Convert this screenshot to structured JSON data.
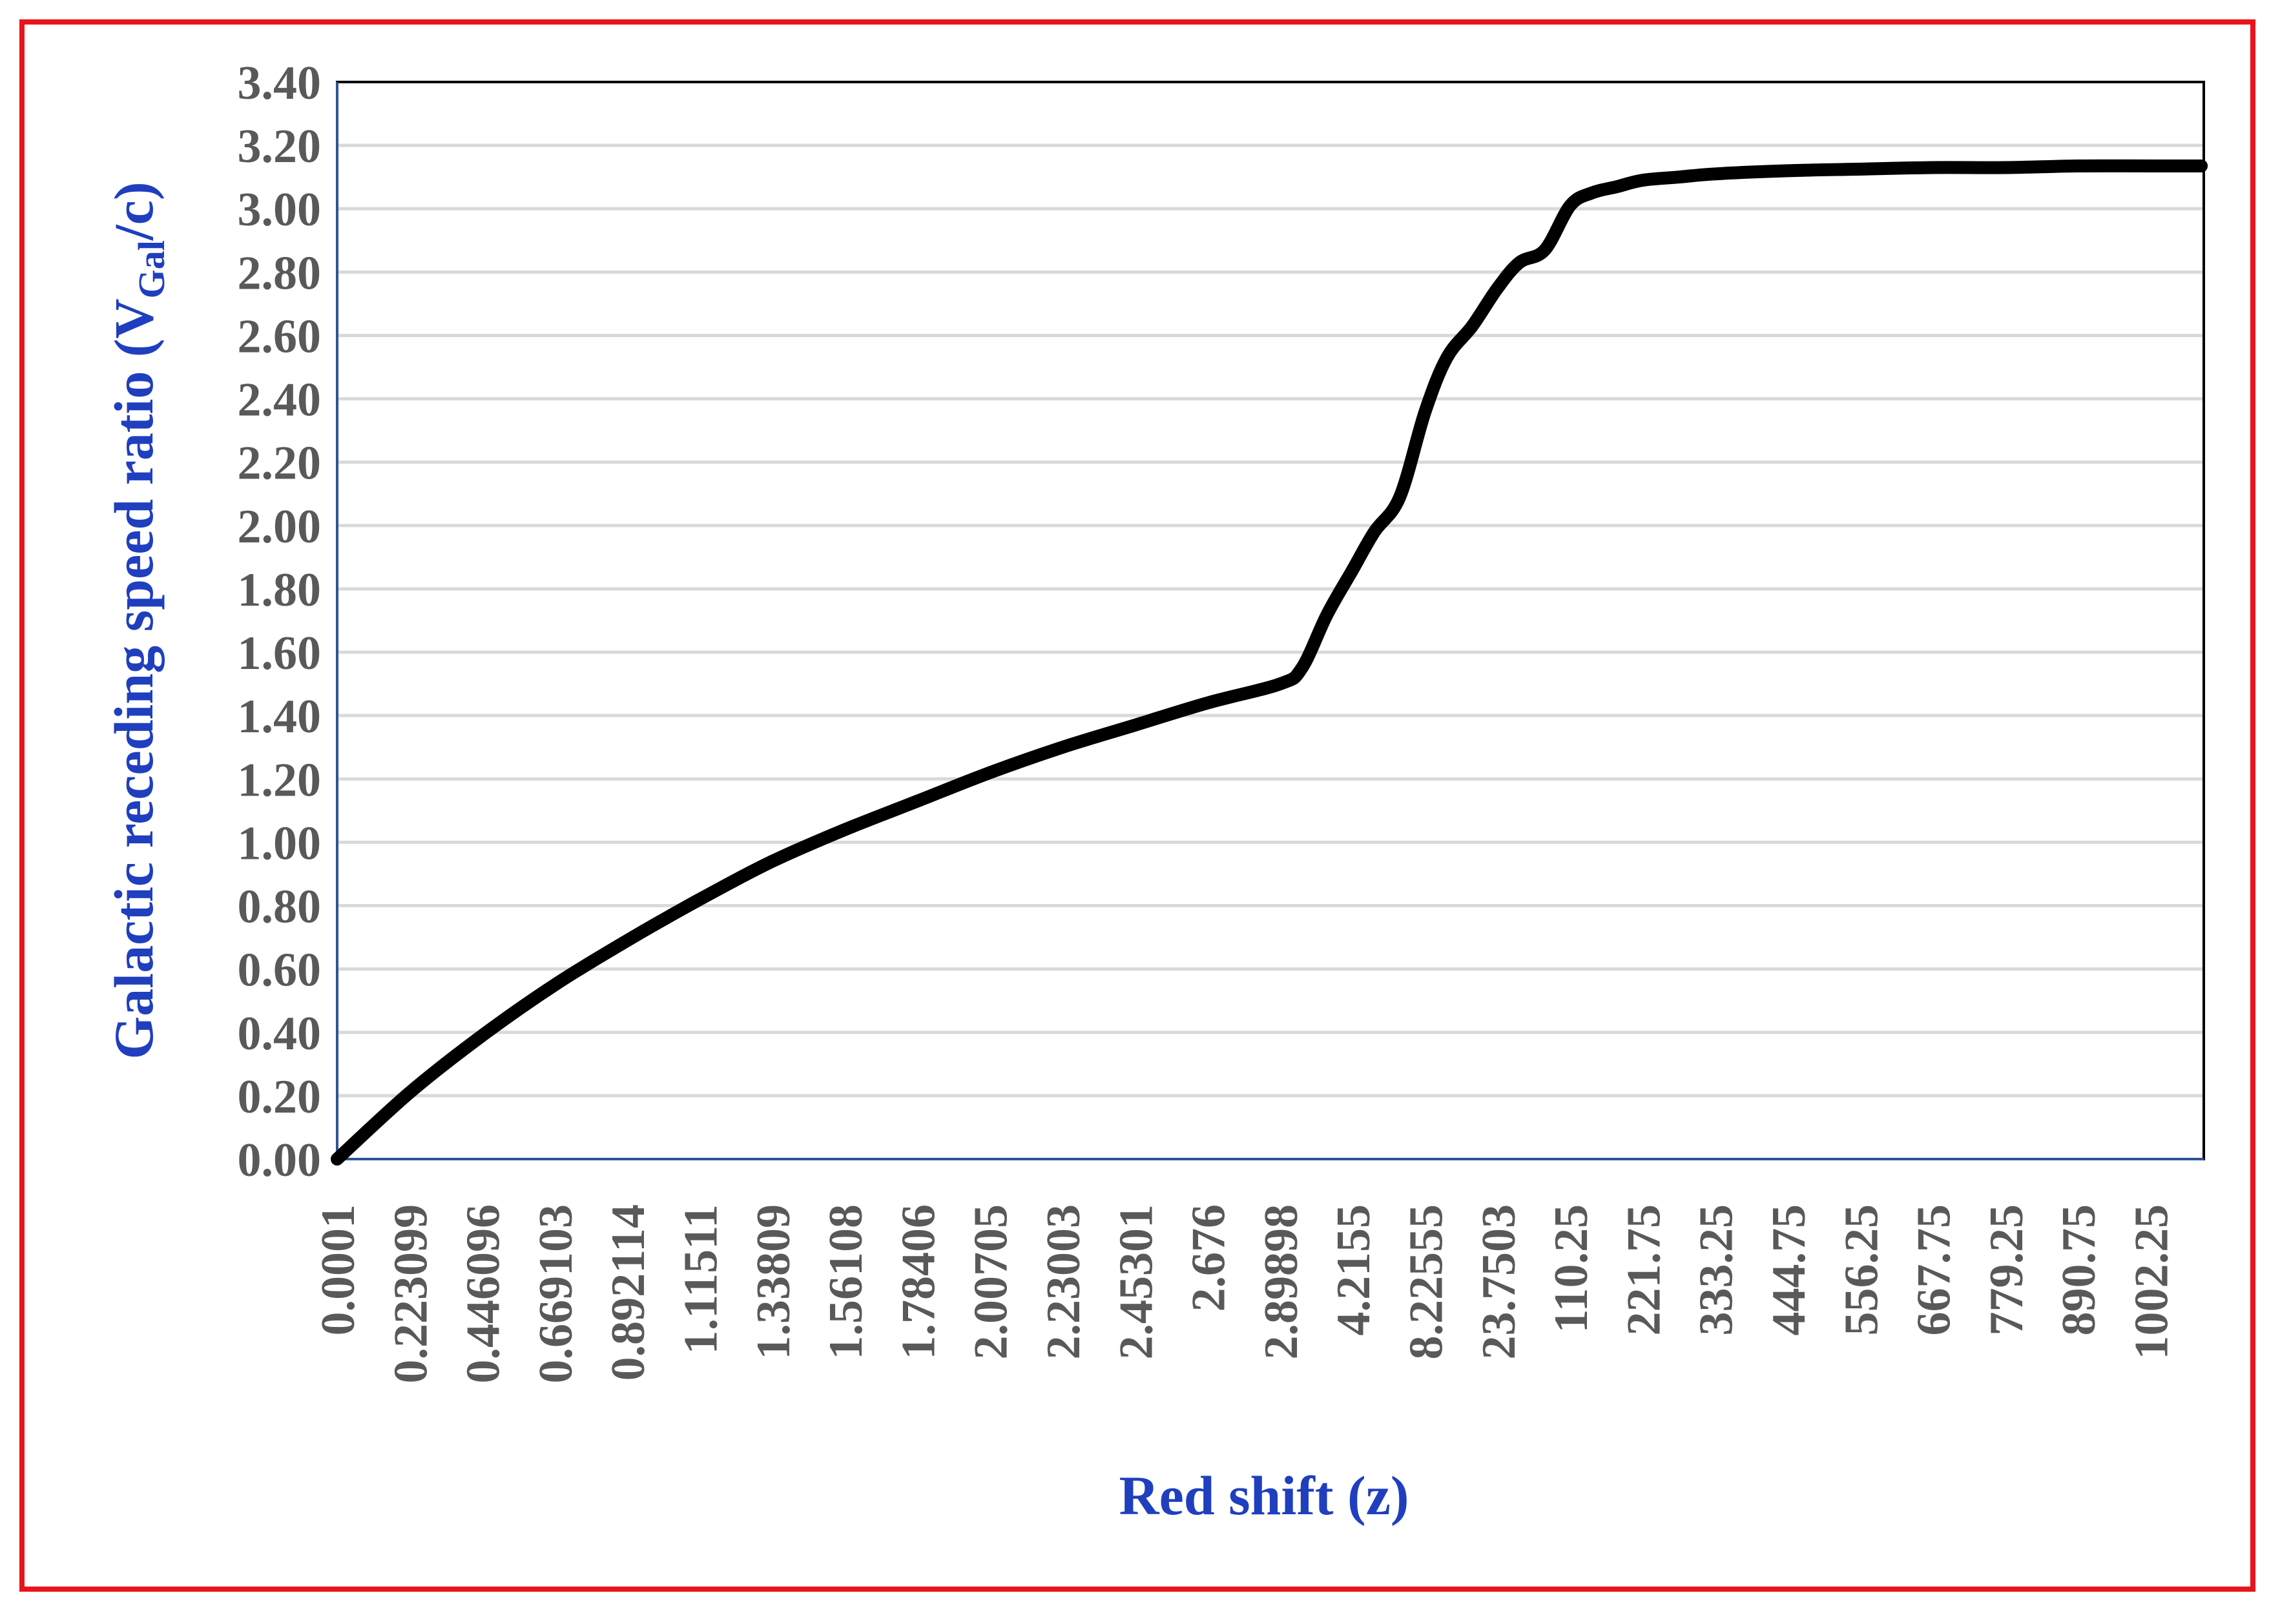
{
  "chart_data": {
    "type": "line",
    "title": "",
    "xlabel": "Red shift (z)",
    "ylabel": {
      "prefix": "Galactic receding speed ratio (V",
      "subscript": "Gal",
      "suffix": "/c)"
    },
    "ylim": [
      0,
      3.4
    ],
    "yticks": [
      "0.00",
      "0.20",
      "0.40",
      "0.60",
      "0.80",
      "1.00",
      "1.20",
      "1.40",
      "1.60",
      "1.80",
      "2.00",
      "2.20",
      "2.40",
      "2.60",
      "2.80",
      "3.00",
      "3.20",
      "3.40"
    ],
    "x_category_labels": [
      "0.0001",
      "0.223099",
      "0.446096",
      "0.669103",
      "0.892114",
      "1.11511",
      "1.33809",
      "1.56108",
      "1.78406",
      "2.00705",
      "2.23003",
      "2.45301",
      "2.676",
      "2.89898",
      "4.2155",
      "8.22555",
      "23.7503",
      "110.25",
      "221.75",
      "333.25",
      "444.75",
      "556.25",
      "667.75",
      "779.25",
      "890.75",
      "1002.25"
    ],
    "grid": true,
    "legend": "none",
    "line_color": "#000000",
    "series": [
      {
        "x_category_index": [
          0,
          1,
          2,
          3,
          4,
          5,
          6,
          7,
          8,
          9,
          10,
          11,
          12,
          13,
          13.3,
          13.65,
          14,
          14.3,
          14.65,
          15,
          15.3,
          15.65,
          16,
          16.3,
          16.65,
          17,
          17.3,
          17.65,
          18,
          18.5,
          19,
          20,
          21,
          22,
          23,
          24,
          25,
          25.7
        ],
        "values": [
          0.0,
          0.21,
          0.39,
          0.55,
          0.69,
          0.82,
          0.94,
          1.04,
          1.13,
          1.22,
          1.3,
          1.37,
          1.44,
          1.5,
          1.55,
          1.72,
          1.86,
          1.98,
          2.09,
          2.36,
          2.53,
          2.63,
          2.75,
          2.83,
          2.87,
          3.01,
          3.05,
          3.07,
          3.09,
          3.1,
          3.11,
          3.12,
          3.125,
          3.13,
          3.13,
          3.135,
          3.135,
          3.135
        ]
      }
    ]
  }
}
